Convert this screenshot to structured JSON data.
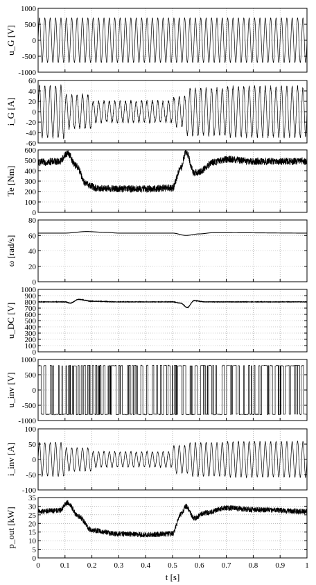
{
  "chart_data": {
    "type": "line",
    "xlabel": "t [s]",
    "xlim": [
      0,
      1
    ],
    "xticks": [
      "0",
      "0.1",
      "0.2",
      "0.3",
      "0.4",
      "0.5",
      "0.6",
      "0.7",
      "0.8",
      "0.9",
      "1"
    ],
    "grid": true,
    "panels": [
      {
        "ylabel": "u_G [V]",
        "ylim": [
          -1000,
          1000
        ],
        "yticks": [
          "1000",
          "500",
          "0",
          "-500",
          "-1000"
        ],
        "signal": {
          "kind": "sine",
          "freq_hz": 50,
          "segments": [
            [
              0,
              1,
              700
            ]
          ]
        }
      },
      {
        "ylabel": "i_G [A]",
        "ylim": [
          -60,
          60
        ],
        "yticks": [
          "60",
          "40",
          "20",
          "0",
          "-20",
          "-40",
          "-60"
        ],
        "signal": {
          "kind": "sine",
          "freq_hz": 50,
          "noise": 3,
          "segments": [
            [
              0,
              0.1,
              50
            ],
            [
              0.1,
              0.2,
              32
            ],
            [
              0.2,
              0.5,
              20
            ],
            [
              0.5,
              0.55,
              28
            ],
            [
              0.55,
              0.7,
              45
            ],
            [
              0.7,
              1,
              48
            ]
          ]
        }
      },
      {
        "ylabel": "Te [Nm]",
        "ylim": [
          0,
          600
        ],
        "yticks": [
          "600",
          "500",
          "400",
          "300",
          "200",
          "100",
          "0"
        ],
        "signal": {
          "kind": "noisy",
          "noise": 35,
          "points": [
            [
              0,
              480
            ],
            [
              0.08,
              490
            ],
            [
              0.11,
              570
            ],
            [
              0.14,
              450
            ],
            [
              0.18,
              270
            ],
            [
              0.22,
              230
            ],
            [
              0.3,
              225
            ],
            [
              0.4,
              225
            ],
            [
              0.5,
              235
            ],
            [
              0.53,
              420
            ],
            [
              0.55,
              580
            ],
            [
              0.58,
              380
            ],
            [
              0.6,
              390
            ],
            [
              0.65,
              480
            ],
            [
              0.7,
              510
            ],
            [
              0.8,
              490
            ],
            [
              1,
              490
            ]
          ]
        }
      },
      {
        "ylabel": "ω [rad/s]",
        "ylim": [
          0,
          80
        ],
        "yticks": [
          "80",
          "60",
          "40",
          "20",
          "0"
        ],
        "signal": {
          "kind": "smooth",
          "noise": 0,
          "points": [
            [
              0,
              63
            ],
            [
              0.1,
              63
            ],
            [
              0.18,
              65
            ],
            [
              0.25,
              64
            ],
            [
              0.3,
              63
            ],
            [
              0.5,
              63
            ],
            [
              0.55,
              60
            ],
            [
              0.6,
              62
            ],
            [
              0.65,
              63.5
            ],
            [
              0.7,
              63.5
            ],
            [
              1,
              63
            ]
          ]
        }
      },
      {
        "ylabel": "u_DC [V]",
        "ylim": [
          0,
          1000
        ],
        "yticks": [
          "1000",
          "900",
          "800",
          "700",
          "600",
          "500",
          "400",
          "300",
          "200",
          "100",
          "0"
        ],
        "signal": {
          "kind": "smooth",
          "noise": 3,
          "points": [
            [
              0,
              800
            ],
            [
              0.1,
              800
            ],
            [
              0.12,
              780
            ],
            [
              0.15,
              840
            ],
            [
              0.2,
              810
            ],
            [
              0.3,
              800
            ],
            [
              0.5,
              800
            ],
            [
              0.53,
              780
            ],
            [
              0.555,
              710
            ],
            [
              0.58,
              820
            ],
            [
              0.62,
              800
            ],
            [
              1,
              800
            ]
          ]
        }
      },
      {
        "ylabel": "u_inv [V]",
        "ylim": [
          -1000,
          1000
        ],
        "yticks": [
          "1000",
          "500",
          "0",
          "-500",
          "-1000"
        ],
        "signal": {
          "kind": "pwm",
          "level": 800
        }
      },
      {
        "ylabel": "i_inv [A]",
        "ylim": [
          -100,
          100
        ],
        "yticks": [
          "100",
          "50",
          "0",
          "-50",
          "-100"
        ],
        "signal": {
          "kind": "sine",
          "freq_hz": 50,
          "noise": 2,
          "segments": [
            [
              0,
              0.1,
              55
            ],
            [
              0.1,
              0.2,
              38
            ],
            [
              0.2,
              0.5,
              25
            ],
            [
              0.5,
              0.56,
              45
            ],
            [
              0.56,
              0.7,
              55
            ],
            [
              0.7,
              1,
              58
            ]
          ]
        }
      },
      {
        "ylabel": "p_out [kW]",
        "ylim": [
          0,
          35
        ],
        "yticks": [
          "35",
          "30",
          "25",
          "20",
          "15",
          "10",
          "5",
          "0"
        ],
        "signal": {
          "kind": "noisy",
          "noise": 1.6,
          "points": [
            [
              0,
              27
            ],
            [
              0.08,
              27.5
            ],
            [
              0.11,
              32
            ],
            [
              0.15,
              24
            ],
            [
              0.2,
              16
            ],
            [
              0.3,
              14
            ],
            [
              0.4,
              13.5
            ],
            [
              0.5,
              14
            ],
            [
              0.53,
              25
            ],
            [
              0.55,
              30
            ],
            [
              0.58,
              23
            ],
            [
              0.62,
              26
            ],
            [
              0.7,
              29
            ],
            [
              0.8,
              28
            ],
            [
              1,
              27
            ]
          ]
        }
      }
    ]
  }
}
